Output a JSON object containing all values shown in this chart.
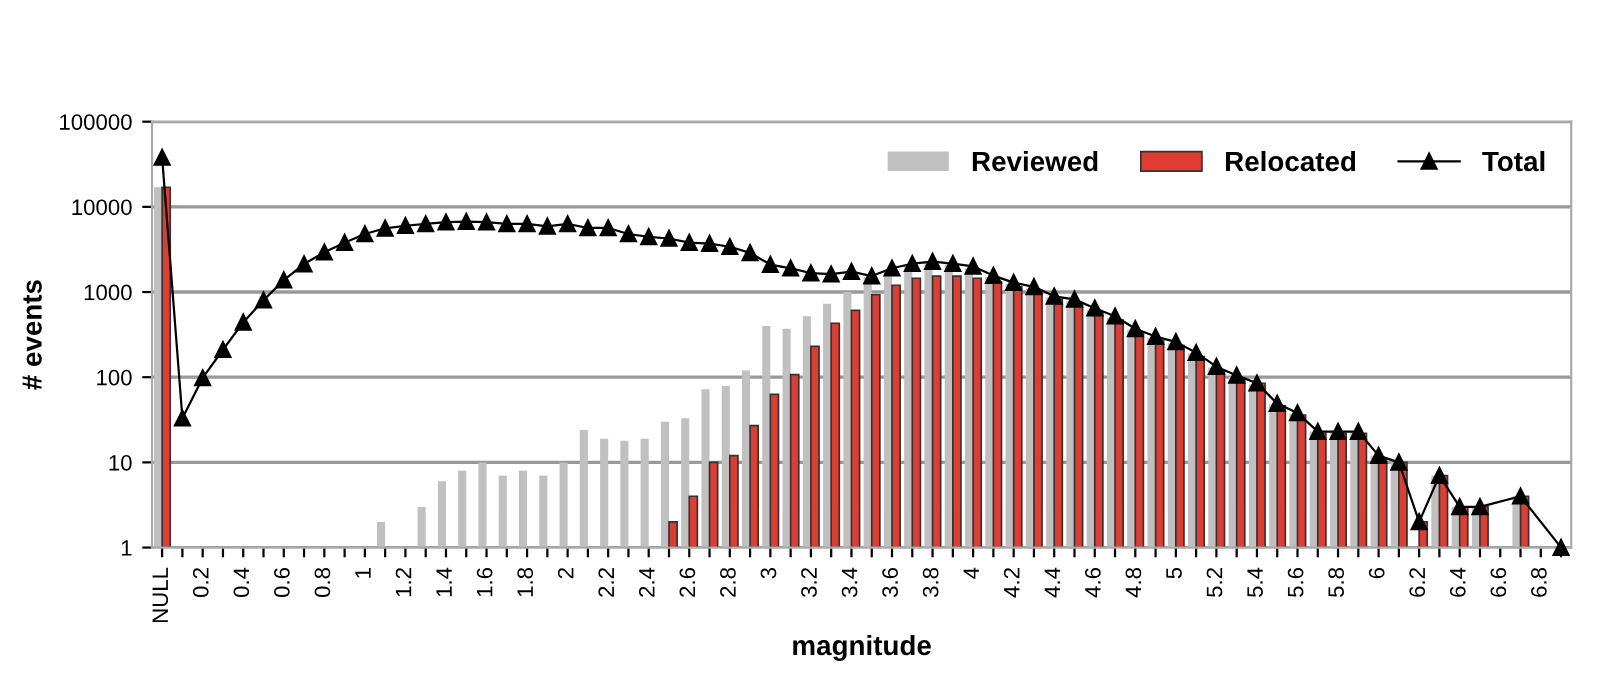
{
  "chart_data": {
    "type": "bar",
    "xlabel": "magnitude",
    "ylabel": "# events",
    "categories": [
      "NULL",
      null,
      "0.2",
      null,
      "0.4",
      null,
      "0.6",
      null,
      "0.8",
      null,
      "1",
      null,
      "1.2",
      null,
      "1.4",
      null,
      "1.6",
      null,
      "1.8",
      null,
      "2",
      null,
      "2.2",
      null,
      "2.4",
      null,
      "2.6",
      null,
      "2.8",
      null,
      "3",
      null,
      "3.2",
      null,
      "3.4",
      null,
      "3.6",
      null,
      "3.8",
      null,
      "4",
      null,
      "4.2",
      null,
      "4.4",
      null,
      "4.6",
      null,
      "4.8",
      null,
      "5",
      null,
      "5.2",
      null,
      "5.4",
      null,
      "5.6",
      null,
      "5.8",
      null,
      "6",
      null,
      "6.2",
      null,
      "6.4",
      null,
      "6.6",
      null,
      "6.8",
      null
    ],
    "series": [
      {
        "name": "Reviewed",
        "color": "#c0c0c0",
        "values": [
          17000,
          null,
          null,
          null,
          null,
          null,
          null,
          null,
          null,
          null,
          null,
          2,
          null,
          3,
          6,
          8,
          10,
          7,
          8,
          7,
          10,
          24,
          19,
          18,
          19,
          30,
          33,
          72,
          79,
          120,
          400,
          370,
          520,
          730,
          1000,
          1500,
          1800,
          2100,
          2200,
          2100,
          1900,
          1500,
          1250,
          1100,
          860,
          790,
          620,
          500,
          360,
          290,
          250,
          190,
          130,
          100,
          82,
          48,
          37,
          23,
          23,
          23,
          12,
          10,
          null,
          7,
          3,
          3,
          null,
          4,
          null,
          null
        ]
      },
      {
        "name": "Relocated",
        "color": "#e03c31",
        "values": [
          17000,
          null,
          null,
          null,
          null,
          null,
          null,
          null,
          null,
          null,
          null,
          null,
          null,
          null,
          null,
          null,
          null,
          null,
          null,
          null,
          null,
          null,
          null,
          null,
          null,
          2,
          4,
          10,
          12,
          27,
          63,
          107,
          230,
          430,
          610,
          930,
          1200,
          1450,
          1540,
          1540,
          1450,
          1320,
          1150,
          1050,
          820,
          740,
          580,
          470,
          340,
          270,
          235,
          175,
          120,
          95,
          85,
          46,
          36,
          22,
          22,
          22,
          11,
          10,
          2,
          7,
          3,
          3,
          null,
          4,
          null,
          null
        ]
      },
      {
        "name": "Total",
        "type": "line",
        "color": "#000000",
        "marker": "triangle",
        "values": [
          38000,
          33,
          98,
          210,
          440,
          800,
          1380,
          2130,
          2930,
          3800,
          4800,
          5600,
          6000,
          6300,
          6600,
          6700,
          6600,
          6300,
          6300,
          5900,
          6300,
          5650,
          5650,
          4800,
          4450,
          4250,
          3800,
          3700,
          3400,
          2880,
          2100,
          1900,
          1670,
          1620,
          1740,
          1540,
          1900,
          2150,
          2280,
          2150,
          2000,
          1560,
          1290,
          1150,
          890,
          820,
          645,
          520,
          370,
          300,
          260,
          194,
          133,
          105,
          85,
          49,
          38,
          23,
          23,
          23,
          12,
          10,
          2,
          7,
          3,
          3,
          null,
          4,
          null,
          1
        ]
      }
    ],
    "log": true,
    "ylim": [
      1,
      100000
    ],
    "yticks": [
      1,
      10,
      100,
      1000,
      10000,
      100000
    ],
    "grid": "y",
    "legend": "top right"
  }
}
